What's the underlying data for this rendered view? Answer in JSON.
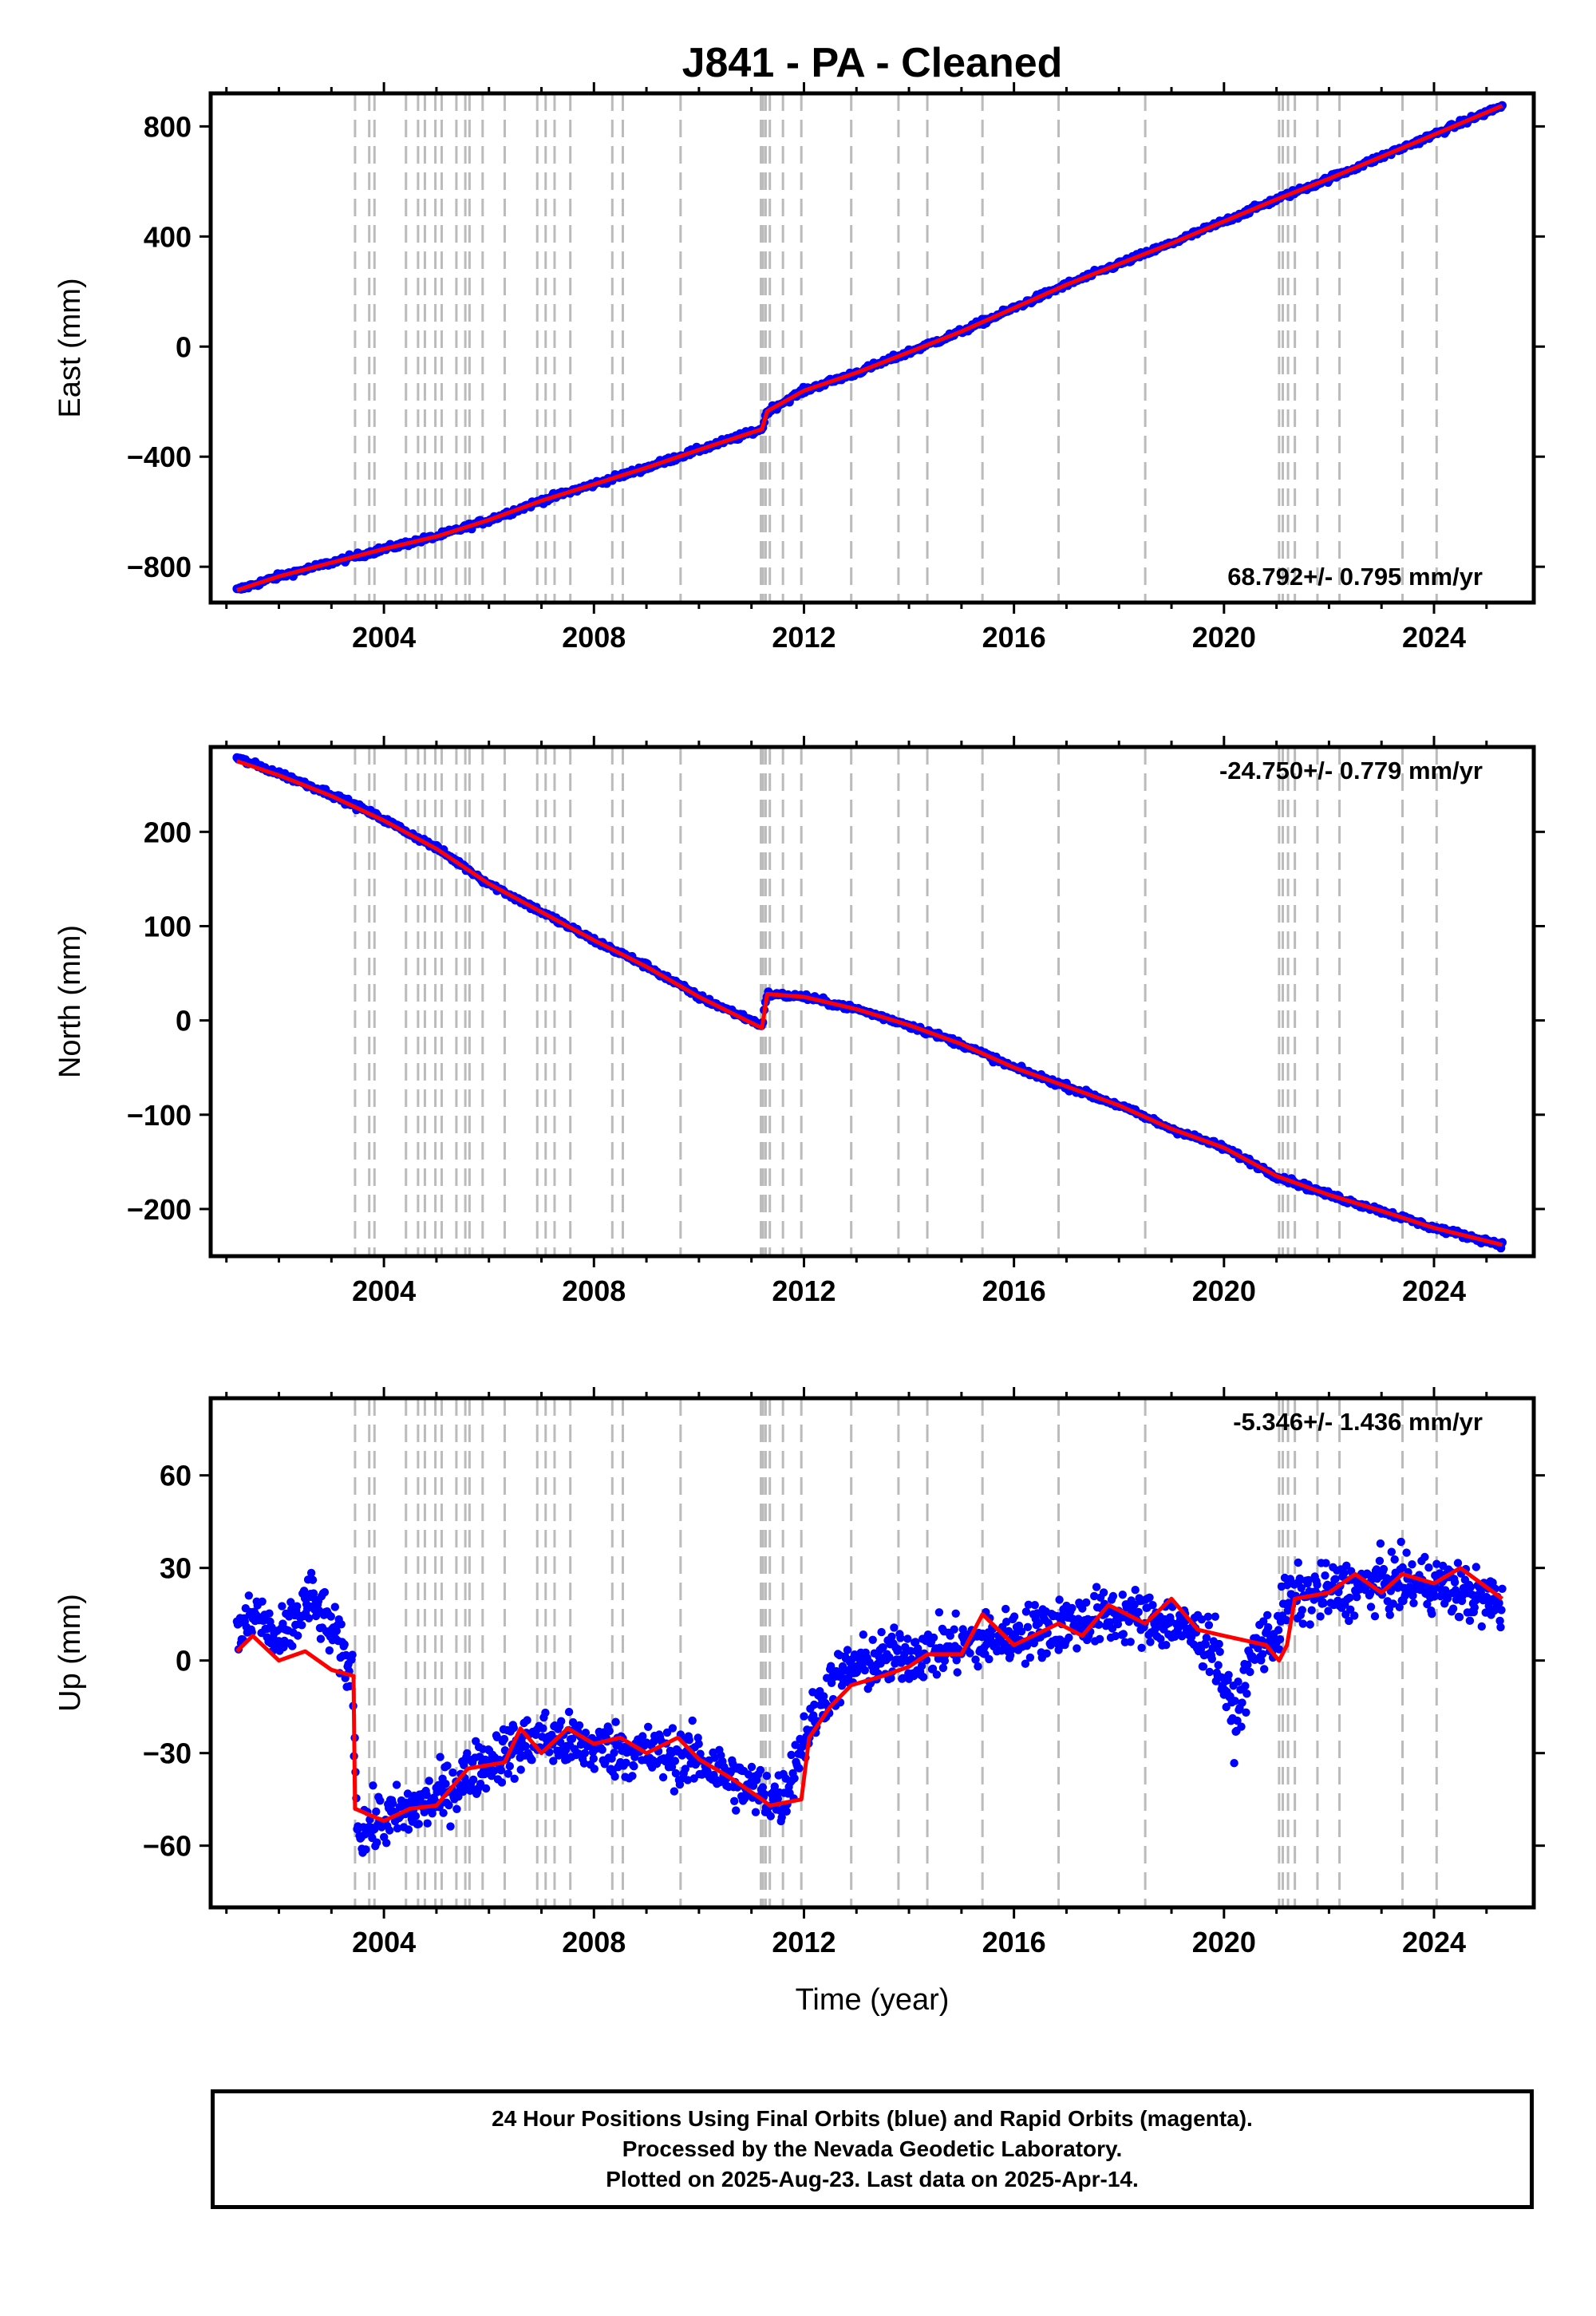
{
  "title": "J841  - PA - Cleaned",
  "xlabel": "Time (year)",
  "footer": {
    "line1": "24 Hour Positions Using Final Orbits (blue) and Rapid Orbits (magenta).",
    "line2": "Processed by the Nevada Geodetic Laboratory.",
    "line3": "Plotted on 2025-Aug-23. Last data on 2025-Apr-14."
  },
  "colors": {
    "final_orbits": "#0000ff",
    "model": "#ff0000",
    "event_lines": "#bbbbbb"
  },
  "chart_data": [
    {
      "type": "scatter",
      "panel": "east",
      "ylabel": "East (mm)",
      "rate_label": "68.792+/- 0.795 mm/yr",
      "xlim": [
        2000.7,
        2025.9
      ],
      "ylim": [
        -930,
        920
      ],
      "xticks": [
        2004,
        2008,
        2012,
        2016,
        2020,
        2024
      ],
      "yticks": [
        -800,
        -400,
        0,
        400,
        800
      ],
      "event_lines": [
        2003.45,
        2003.72,
        2003.82,
        2004.42,
        2004.65,
        2004.78,
        2004.98,
        2005.1,
        2005.38,
        2005.55,
        2005.63,
        2005.88,
        2006.3,
        2006.92,
        2007.08,
        2007.25,
        2007.55,
        2008.35,
        2008.55,
        2009.65,
        2011.18,
        2011.22,
        2011.27,
        2011.35,
        2011.6,
        2011.95,
        2012.9,
        2013.8,
        2014.35,
        2015.4,
        2016.85,
        2018.5,
        2021.05,
        2021.12,
        2021.22,
        2021.35,
        2021.78,
        2022.2,
        2023.4,
        2024.05
      ],
      "series": [
        {
          "name": "Final Orbits",
          "points": [
            [
              2001.2,
              -885
            ],
            [
              2002.0,
              -835
            ],
            [
              2003.0,
              -785
            ],
            [
              2004.0,
              -735
            ],
            [
              2005.0,
              -690
            ],
            [
              2006.0,
              -630
            ],
            [
              2007.0,
              -560
            ],
            [
              2008.0,
              -500
            ],
            [
              2009.0,
              -440
            ],
            [
              2010.0,
              -375
            ],
            [
              2011.2,
              -300
            ],
            [
              2011.3,
              -235
            ],
            [
              2012.0,
              -160
            ],
            [
              2013.0,
              -95
            ],
            [
              2014.0,
              -20
            ],
            [
              2015.0,
              55
            ],
            [
              2016.0,
              140
            ],
            [
              2017.0,
              225
            ],
            [
              2018.0,
              300
            ],
            [
              2019.0,
              375
            ],
            [
              2020.0,
              455
            ],
            [
              2021.0,
              535
            ],
            [
              2022.0,
              610
            ],
            [
              2023.0,
              690
            ],
            [
              2024.0,
              770
            ],
            [
              2025.3,
              875
            ]
          ]
        },
        {
          "name": "Model",
          "points": [
            [
              2001.2,
              -885
            ],
            [
              2002.0,
              -835
            ],
            [
              2003.0,
              -785
            ],
            [
              2004.0,
              -735
            ],
            [
              2005.0,
              -690
            ],
            [
              2006.0,
              -630
            ],
            [
              2007.0,
              -560
            ],
            [
              2008.0,
              -500
            ],
            [
              2009.0,
              -440
            ],
            [
              2010.0,
              -375
            ],
            [
              2011.2,
              -300
            ],
            [
              2011.3,
              -235
            ],
            [
              2012.0,
              -160
            ],
            [
              2013.0,
              -95
            ],
            [
              2014.0,
              -20
            ],
            [
              2015.0,
              55
            ],
            [
              2016.0,
              140
            ],
            [
              2017.0,
              225
            ],
            [
              2018.0,
              300
            ],
            [
              2019.0,
              375
            ],
            [
              2020.0,
              455
            ],
            [
              2021.0,
              535
            ],
            [
              2022.0,
              610
            ],
            [
              2023.0,
              690
            ],
            [
              2024.0,
              770
            ],
            [
              2025.3,
              875
            ]
          ]
        }
      ]
    },
    {
      "type": "scatter",
      "panel": "north",
      "ylabel": "North (mm)",
      "rate_label": "-24.750+/- 0.779 mm/yr",
      "xlim": [
        2000.7,
        2025.9
      ],
      "ylim": [
        -250,
        290
      ],
      "xticks": [
        2004,
        2008,
        2012,
        2016,
        2020,
        2024
      ],
      "yticks": [
        -200,
        -100,
        0,
        100,
        200
      ],
      "event_lines": [
        2003.45,
        2003.72,
        2003.82,
        2004.42,
        2004.65,
        2004.78,
        2004.98,
        2005.1,
        2005.38,
        2005.55,
        2005.63,
        2005.88,
        2006.3,
        2006.92,
        2007.08,
        2007.25,
        2007.55,
        2008.35,
        2008.55,
        2009.65,
        2011.18,
        2011.22,
        2011.27,
        2011.35,
        2011.6,
        2011.95,
        2012.9,
        2013.8,
        2014.35,
        2015.4,
        2016.85,
        2018.5,
        2021.05,
        2021.12,
        2021.22,
        2021.35,
        2021.78,
        2022.2,
        2023.4,
        2024.05
      ],
      "series": [
        {
          "name": "Final Orbits",
          "points": [
            [
              2001.2,
              278
            ],
            [
              2002.0,
              262
            ],
            [
              2003.0,
              240
            ],
            [
              2004.0,
              213
            ],
            [
              2005.0,
              183
            ],
            [
              2006.0,
              145
            ],
            [
              2007.0,
              115
            ],
            [
              2008.0,
              85
            ],
            [
              2009.0,
              58
            ],
            [
              2010.0,
              25
            ],
            [
              2011.2,
              -5
            ],
            [
              2011.3,
              28
            ],
            [
              2012.0,
              25
            ],
            [
              2013.0,
              12
            ],
            [
              2014.0,
              -5
            ],
            [
              2015.0,
              -25
            ],
            [
              2016.0,
              -50
            ],
            [
              2017.0,
              -70
            ],
            [
              2018.0,
              -90
            ],
            [
              2019.0,
              -115
            ],
            [
              2020.0,
              -135
            ],
            [
              2021.0,
              -165
            ],
            [
              2022.0,
              -185
            ],
            [
              2023.0,
              -202
            ],
            [
              2024.0,
              -220
            ],
            [
              2025.3,
              -238
            ]
          ]
        },
        {
          "name": "Model",
          "points": [
            [
              2001.2,
              275
            ],
            [
              2002.0,
              260
            ],
            [
              2003.0,
              238
            ],
            [
              2004.0,
              212
            ],
            [
              2005.0,
              182
            ],
            [
              2006.0,
              145
            ],
            [
              2007.0,
              115
            ],
            [
              2008.0,
              85
            ],
            [
              2009.0,
              57
            ],
            [
              2010.0,
              25
            ],
            [
              2011.2,
              -8
            ],
            [
              2011.3,
              28
            ],
            [
              2012.0,
              25
            ],
            [
              2013.0,
              12
            ],
            [
              2014.0,
              -5
            ],
            [
              2015.0,
              -25
            ],
            [
              2016.0,
              -50
            ],
            [
              2017.0,
              -70
            ],
            [
              2018.0,
              -90
            ],
            [
              2019.0,
              -115
            ],
            [
              2020.0,
              -135
            ],
            [
              2021.0,
              -165
            ],
            [
              2022.0,
              -185
            ],
            [
              2023.0,
              -202
            ],
            [
              2024.0,
              -220
            ],
            [
              2025.3,
              -238
            ]
          ]
        }
      ]
    },
    {
      "type": "scatter",
      "panel": "up",
      "ylabel": "Up (mm)",
      "rate_label": "-5.346+/- 1.436 mm/yr",
      "xlim": [
        2000.7,
        2025.9
      ],
      "ylim": [
        -80,
        85
      ],
      "xticks": [
        2004,
        2008,
        2012,
        2016,
        2020,
        2024
      ],
      "yticks": [
        -60,
        -30,
        0,
        30,
        60
      ],
      "event_lines": [
        2003.45,
        2003.72,
        2003.82,
        2004.42,
        2004.65,
        2004.78,
        2004.98,
        2005.1,
        2005.38,
        2005.55,
        2005.63,
        2005.88,
        2006.3,
        2006.92,
        2007.08,
        2007.25,
        2007.55,
        2008.35,
        2008.55,
        2009.65,
        2011.18,
        2011.22,
        2011.27,
        2011.35,
        2011.6,
        2011.95,
        2012.9,
        2013.8,
        2014.35,
        2015.4,
        2016.85,
        2018.5,
        2021.05,
        2021.12,
        2021.22,
        2021.35,
        2021.78,
        2022.2,
        2023.4,
        2024.05
      ],
      "series": [
        {
          "name": "Final Orbits",
          "points": [
            [
              2001.2,
              8
            ],
            [
              2001.6,
              15
            ],
            [
              2002.0,
              5
            ],
            [
              2002.6,
              20
            ],
            [
              2003.0,
              10
            ],
            [
              2003.4,
              -5
            ],
            [
              2003.5,
              -55
            ],
            [
              2004.0,
              -52
            ],
            [
              2005.0,
              -45
            ],
            [
              2006.0,
              -32
            ],
            [
              2007.0,
              -25
            ],
            [
              2008.0,
              -28
            ],
            [
              2009.0,
              -30
            ],
            [
              2010.0,
              -32
            ],
            [
              2011.0,
              -42
            ],
            [
              2011.6,
              -45
            ],
            [
              2012.0,
              -25
            ],
            [
              2012.5,
              -8
            ],
            [
              2013.0,
              -2
            ],
            [
              2014.0,
              2
            ],
            [
              2015.0,
              5
            ],
            [
              2016.0,
              8
            ],
            [
              2017.0,
              12
            ],
            [
              2018.0,
              15
            ],
            [
              2019.0,
              12
            ],
            [
              2019.8,
              5
            ],
            [
              2020.2,
              -20
            ],
            [
              2020.6,
              5
            ],
            [
              2021.0,
              8
            ],
            [
              2021.2,
              20
            ],
            [
              2022.0,
              22
            ],
            [
              2023.0,
              25
            ],
            [
              2024.0,
              25
            ],
            [
              2025.3,
              18
            ]
          ]
        },
        {
          "name": "Model",
          "points": [
            [
              2001.2,
              3
            ],
            [
              2001.5,
              8
            ],
            [
              2002.0,
              0
            ],
            [
              2002.5,
              3
            ],
            [
              2003.0,
              -3
            ],
            [
              2003.42,
              -5
            ],
            [
              2003.45,
              -48
            ],
            [
              2004.0,
              -52
            ],
            [
              2004.5,
              -48
            ],
            [
              2005.0,
              -47
            ],
            [
              2005.6,
              -35
            ],
            [
              2006.3,
              -33
            ],
            [
              2006.6,
              -22
            ],
            [
              2007.0,
              -30
            ],
            [
              2007.5,
              -22
            ],
            [
              2008.0,
              -27
            ],
            [
              2008.5,
              -25
            ],
            [
              2009.0,
              -30
            ],
            [
              2009.6,
              -25
            ],
            [
              2010.0,
              -32
            ],
            [
              2010.6,
              -38
            ],
            [
              2011.2,
              -45
            ],
            [
              2011.35,
              -47
            ],
            [
              2011.95,
              -45
            ],
            [
              2012.1,
              -25
            ],
            [
              2012.5,
              -15
            ],
            [
              2012.9,
              -8
            ],
            [
              2013.5,
              -5
            ],
            [
              2014.0,
              -2
            ],
            [
              2014.35,
              2
            ],
            [
              2015.0,
              2
            ],
            [
              2015.4,
              15
            ],
            [
              2016.0,
              5
            ],
            [
              2016.85,
              12
            ],
            [
              2017.3,
              8
            ],
            [
              2017.8,
              18
            ],
            [
              2018.5,
              12
            ],
            [
              2019.0,
              20
            ],
            [
              2019.5,
              10
            ],
            [
              2020.0,
              8
            ],
            [
              2020.8,
              5
            ],
            [
              2021.05,
              0
            ],
            [
              2021.2,
              5
            ],
            [
              2021.35,
              20
            ],
            [
              2022.0,
              22
            ],
            [
              2022.5,
              28
            ],
            [
              2023.0,
              22
            ],
            [
              2023.4,
              28
            ],
            [
              2024.0,
              25
            ],
            [
              2024.5,
              30
            ],
            [
              2025.3,
              20
            ]
          ]
        }
      ]
    }
  ]
}
